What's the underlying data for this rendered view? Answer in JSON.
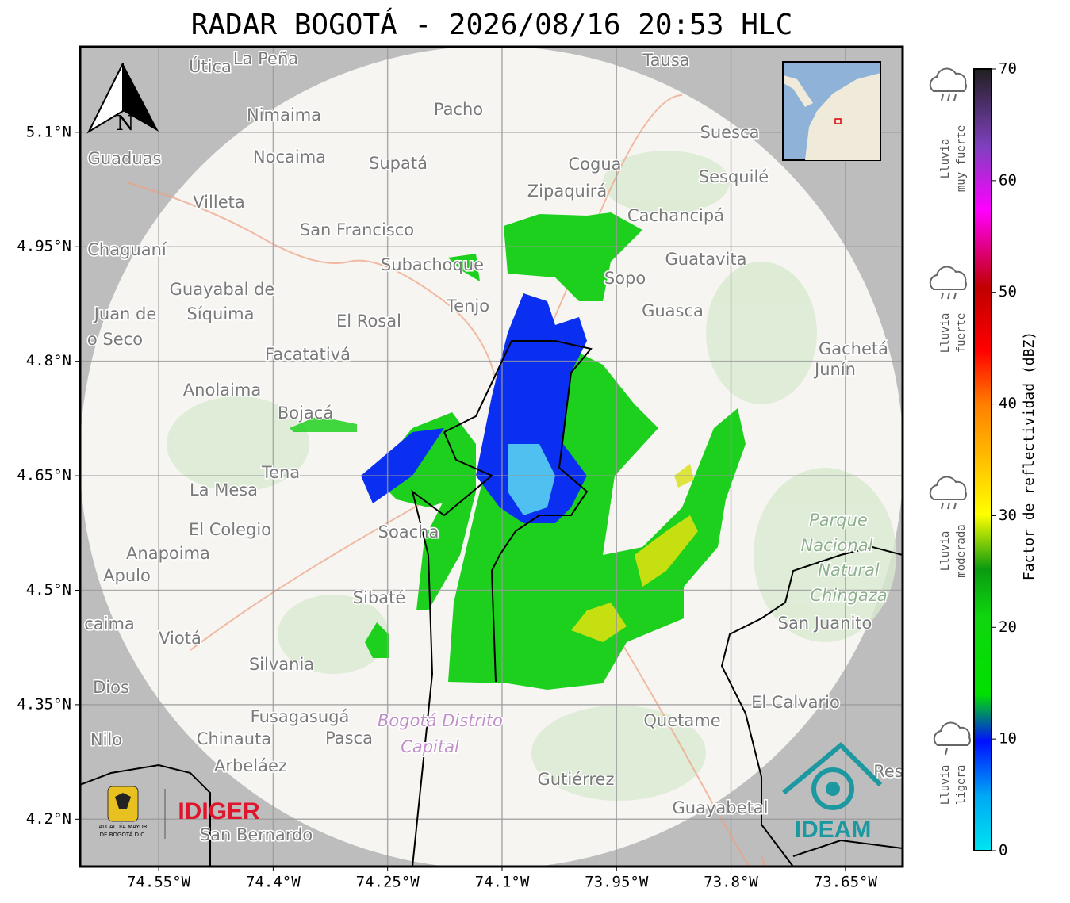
{
  "map": {
    "title": "RADAR BOGOTÁ - 2026/08/16 20:53 HLC",
    "xlim": [
      -74.653,
      -73.575
    ],
    "ylim": [
      4.138,
      5.212
    ],
    "xticks": [
      {
        "value": -74.55,
        "label": "74.55°W"
      },
      {
        "value": -74.4,
        "label": "74.4°W"
      },
      {
        "value": -74.25,
        "label": "74.25°W"
      },
      {
        "value": -74.1,
        "label": "74.1°W"
      },
      {
        "value": -73.95,
        "label": "73.95°W"
      },
      {
        "value": -73.8,
        "label": "73.8°W"
      },
      {
        "value": -73.65,
        "label": "73.65°W"
      }
    ],
    "yticks": [
      {
        "value": 5.1,
        "label": "5.1°N"
      },
      {
        "value": 4.95,
        "label": "4.95°N"
      },
      {
        "value": 4.8,
        "label": "4.8°N"
      },
      {
        "value": 4.65,
        "label": "4.65°N"
      },
      {
        "value": 4.5,
        "label": "4.5°N"
      },
      {
        "value": 4.35,
        "label": "4.35°N"
      },
      {
        "value": 4.2,
        "label": "4.2°N"
      }
    ],
    "north": "N",
    "places": [
      "Útica",
      "La Peña",
      "Tausa",
      "Nimaima",
      "Pacho",
      "Guaduas",
      "Nocaima",
      "Supatá",
      "Cogua",
      "Suesca",
      "Sesquilé",
      "Villeta",
      "Zipaquirá",
      "Cachancipá",
      "San Francisco",
      "Chaguaní",
      "Guatavita",
      "Subachoque",
      "Sopo",
      "Guayabal de",
      "Síquima",
      "Tenjo",
      "Guasca",
      "El Rosal",
      "Juan de",
      "o Seco",
      "Facatativá",
      "Gachetá",
      "Junín",
      "Anolaima",
      "Bojacá",
      "Tena",
      "La Mesa",
      "El Colegio",
      "Soacha",
      "Anapoima",
      "Apulo",
      "Sibaté",
      "San Juanito",
      "caima",
      "Viotá",
      "Silvania",
      "Quetame",
      "El Calvario",
      "Dios",
      "Fusagasugá",
      "Nilo",
      "Chinauta",
      "Pasca",
      "Arbeláez",
      "Gutiérrez",
      "Guayabetal",
      "San Bernardo",
      "Res"
    ],
    "park": [
      "Parque",
      "Nacional",
      "Natural",
      "Chingaza"
    ],
    "district": [
      "Bogotá Distrito",
      "Capital"
    ],
    "logos": {
      "alcaldia": [
        "ALCALDÍA MAYOR",
        "DE BOGOTÁ D.C."
      ],
      "idiger": "IDIGER",
      "ideam": "IDEAM"
    },
    "colorbar": {
      "label": "Factor de reflectividad (dBZ)",
      "lim": [
        0,
        70
      ],
      "ticks": [
        0,
        10,
        20,
        30,
        40,
        50,
        60,
        70
      ]
    },
    "legend": [
      [
        "Lluvia",
        "muy fuerte"
      ],
      [
        "Lluvia",
        "fuerte"
      ],
      [
        "Lluvia",
        "moderada"
      ],
      [
        "Lluvia",
        "ligera"
      ]
    ]
  }
}
